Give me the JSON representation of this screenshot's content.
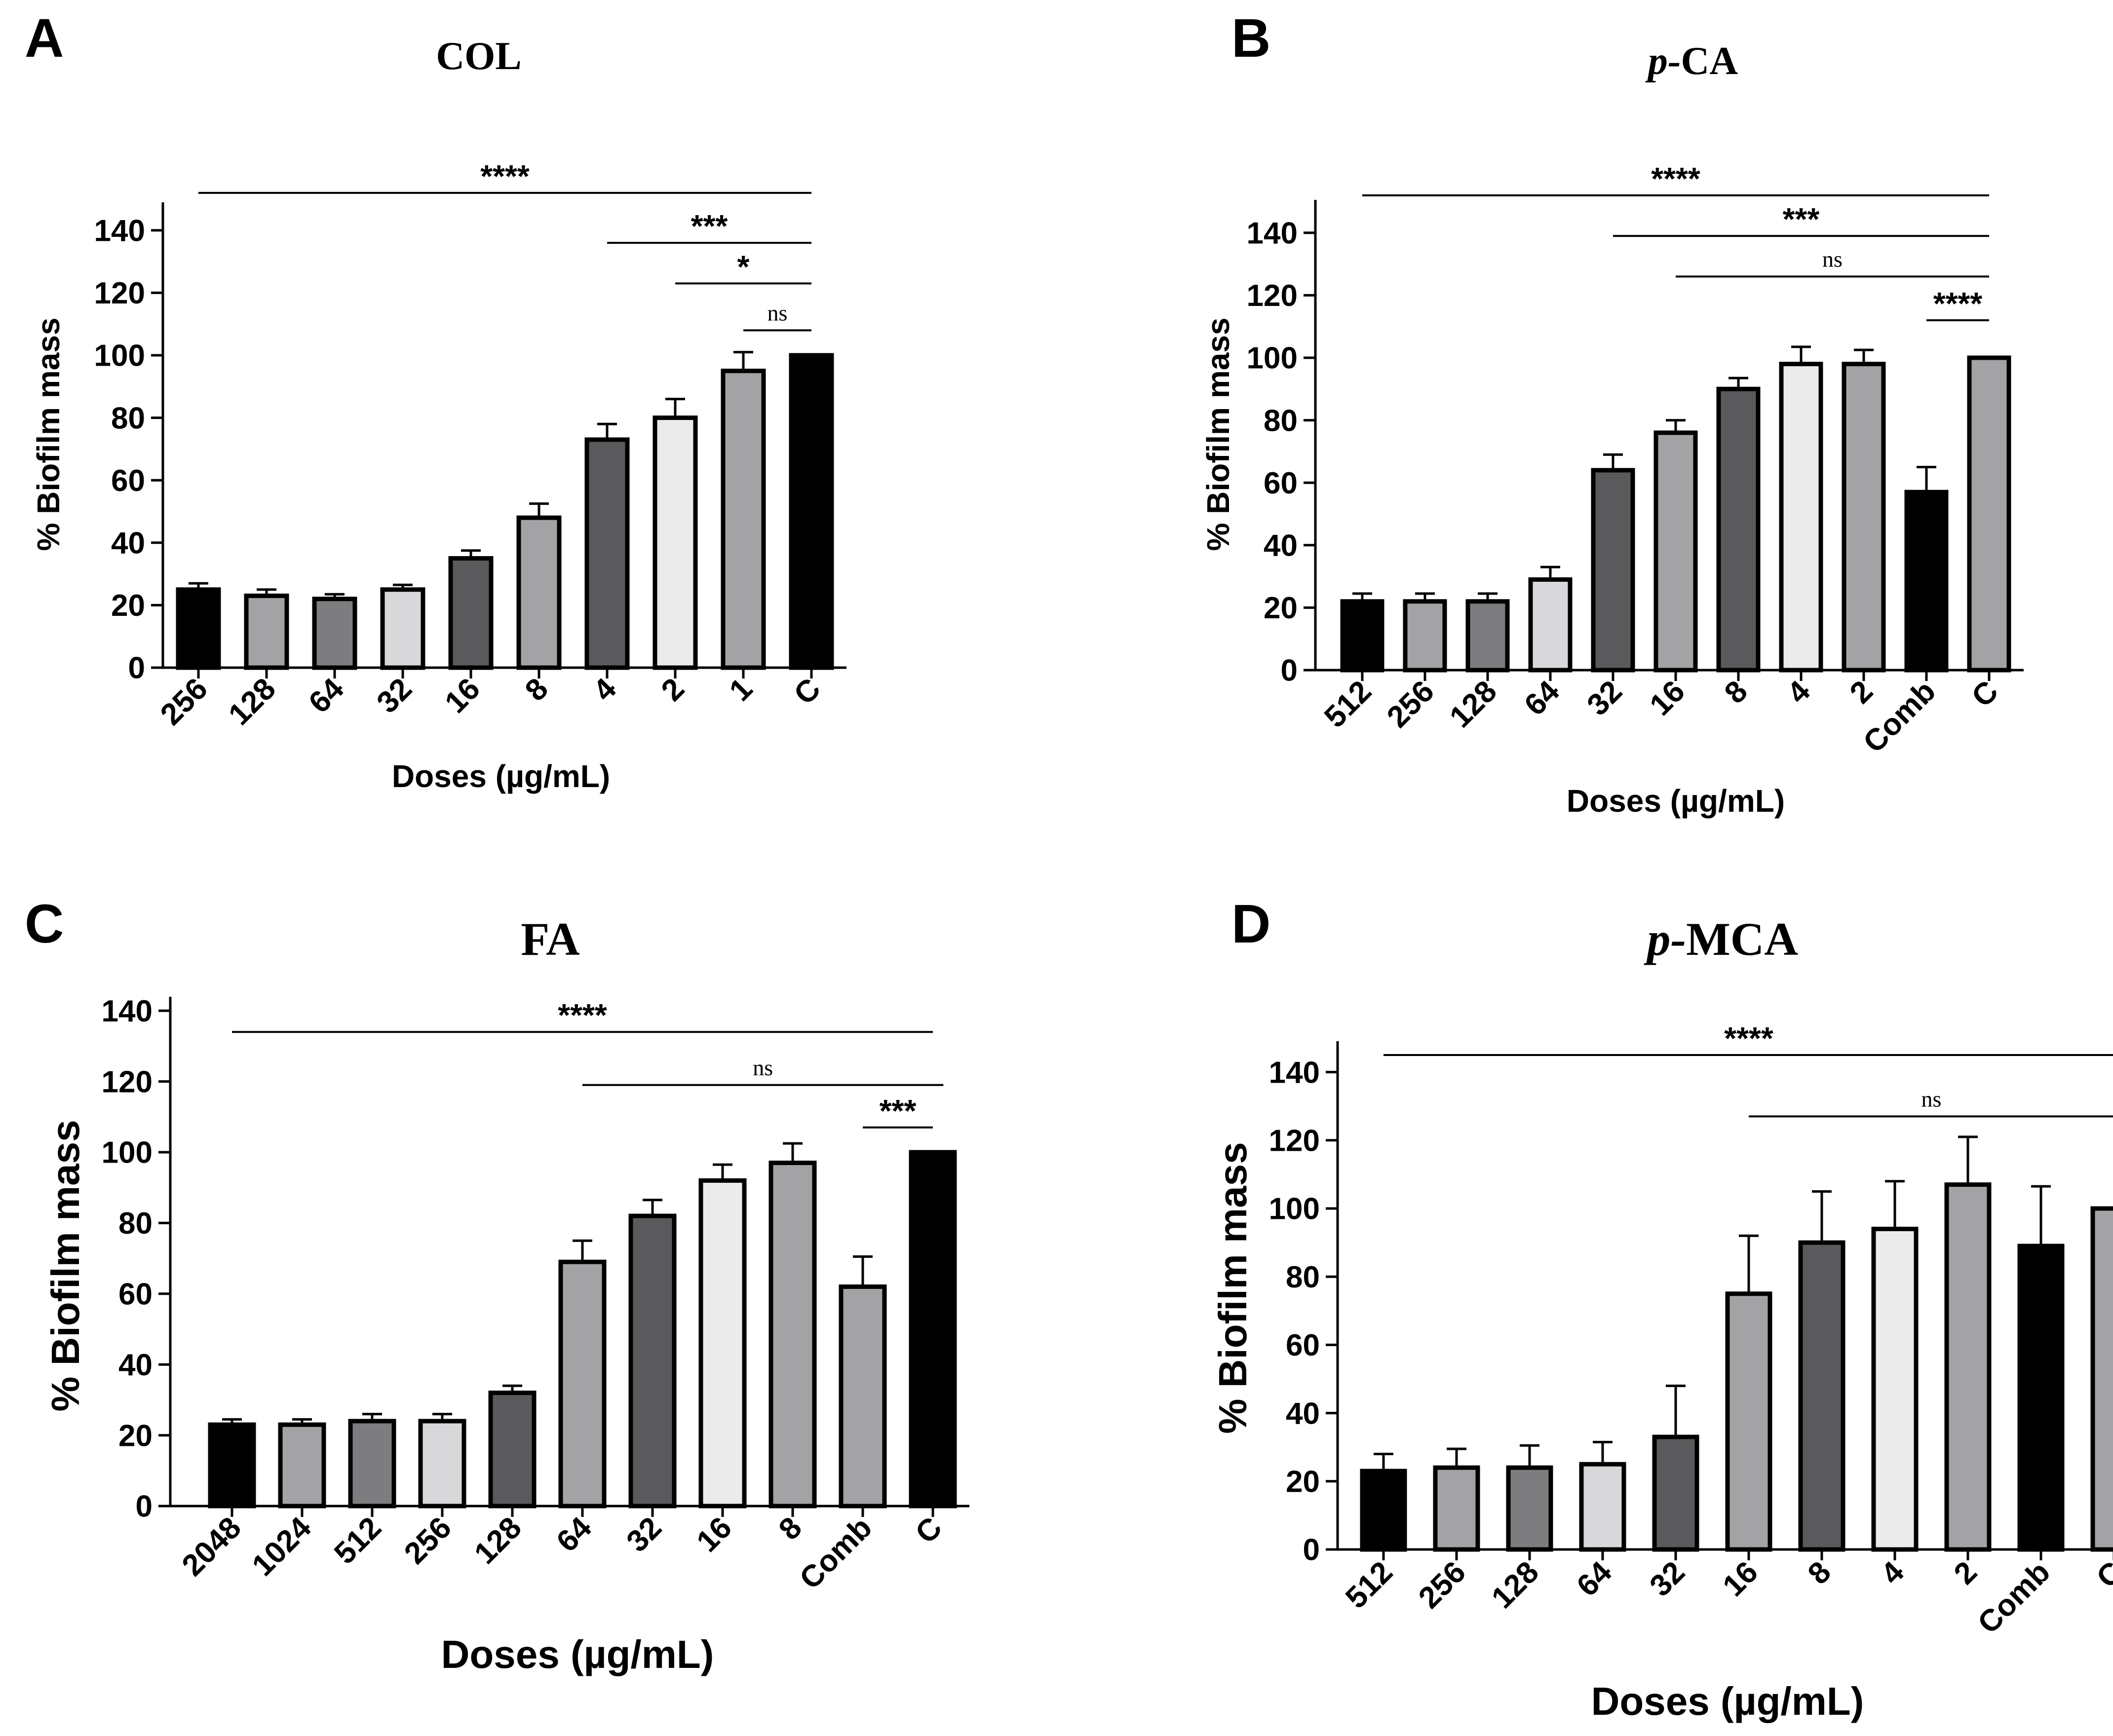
{
  "chart_data": [
    {
      "panel": "A",
      "type": "bar",
      "title": "COL",
      "title_italic_prefix": "",
      "xlabel": "Doses (µg/mL)",
      "ylabel": "% Biofilm mass",
      "ylim": [
        0,
        150
      ],
      "yticks": [
        0,
        20,
        40,
        60,
        80,
        100,
        120,
        140
      ],
      "categories": [
        "256",
        "128",
        "64",
        "32",
        "16",
        "8",
        "4",
        "2",
        "1",
        "C"
      ],
      "values": [
        25,
        23,
        22,
        25,
        35,
        48,
        73,
        80,
        95,
        100
      ],
      "errors": [
        2,
        2,
        1.5,
        1.5,
        2.5,
        4.5,
        5,
        6,
        6,
        0
      ],
      "colors": [
        "#000000",
        "#a3a3a6",
        "#7d7d80",
        "#d8d8da",
        "#5a5a5c",
        "#a3a3a6",
        "#5a5a5c",
        "#ebebec",
        "#a3a3a6",
        "#000000"
      ],
      "significance": [
        {
          "label": "****",
          "from": 0,
          "to": 9,
          "y": 152,
          "style": "stars"
        },
        {
          "label": "***",
          "from": 6,
          "to": 9,
          "y": 136,
          "style": "stars"
        },
        {
          "label": "*",
          "from": 7,
          "to": 9,
          "y": 123,
          "style": "stars"
        },
        {
          "label": "ns",
          "from": 8,
          "to": 9,
          "y": 108,
          "style": "ns"
        }
      ]
    },
    {
      "panel": "B",
      "type": "bar",
      "title": "CA",
      "title_italic_prefix": "p-",
      "xlabel": "Doses (µg/mL)",
      "ylabel": "% Biofilm mass",
      "ylim": [
        0,
        150
      ],
      "yticks": [
        0,
        20,
        40,
        60,
        80,
        100,
        120,
        140
      ],
      "categories": [
        "512",
        "256",
        "128",
        "64",
        "32",
        "16",
        "8",
        "4",
        "2",
        "Comb",
        "C"
      ],
      "values": [
        22,
        22,
        22,
        29,
        64,
        76,
        90,
        98,
        98,
        57,
        100
      ],
      "errors": [
        2.5,
        2.5,
        2.5,
        4,
        5,
        4,
        3.5,
        5.5,
        4.5,
        8,
        0
      ],
      "colors": [
        "#000000",
        "#a3a3a6",
        "#7d7d80",
        "#d8d8da",
        "#5a5a5c",
        "#a3a3a6",
        "#5a5a5c",
        "#ebebec",
        "#a3a3a6",
        "#000000",
        "#a3a3a6"
      ],
      "significance": [
        {
          "label": "****",
          "from": 0,
          "to": 10,
          "y": 152,
          "style": "stars"
        },
        {
          "label": "***",
          "from": 4,
          "to": 10,
          "y": 139,
          "style": "stars"
        },
        {
          "label": "ns",
          "from": 5,
          "to": 10,
          "y": 126,
          "style": "ns"
        },
        {
          "label": "****",
          "from": 9,
          "to": 10,
          "y": 112,
          "style": "stars"
        }
      ]
    },
    {
      "panel": "C",
      "type": "bar",
      "title": "FA",
      "title_italic_prefix": "",
      "xlabel": "Doses (µg/mL)",
      "ylabel": "% Biofilm mass",
      "ylim": [
        0,
        150
      ],
      "yticks": [
        0,
        20,
        40,
        60,
        80,
        100,
        120,
        140
      ],
      "categories": [
        "2048",
        "1024",
        "512",
        "256",
        "128",
        "64",
        "32",
        "16",
        "8",
        "Comb",
        "C"
      ],
      "values": [
        23,
        23,
        24,
        24,
        32,
        69,
        82,
        92,
        97,
        62,
        100
      ],
      "errors": [
        1.5,
        1.5,
        2,
        2,
        2,
        6,
        4.5,
        4.5,
        5.5,
        8.5,
        0
      ],
      "colors": [
        "#000000",
        "#a3a3a6",
        "#7d7d80",
        "#d8d8da",
        "#5a5a5c",
        "#a3a3a6",
        "#5a5a5c",
        "#ebebec",
        "#a3a3a6",
        "#a3a3a6",
        "#000000"
      ],
      "significance": [
        {
          "label": "****",
          "from": 0,
          "to": 10,
          "y": 134,
          "style": "stars"
        },
        {
          "label": "ns",
          "from": 5,
          "to": 10.15,
          "y": 119,
          "style": "ns"
        },
        {
          "label": "***",
          "from": 9,
          "to": 10,
          "y": 107,
          "style": "stars"
        }
      ]
    },
    {
      "panel": "D",
      "type": "bar",
      "title": "MCA",
      "title_italic_prefix": "p-",
      "xlabel": "Doses (µg/mL)",
      "ylabel": "% Biofilm mass",
      "ylim": [
        0,
        150
      ],
      "yticks": [
        0,
        20,
        40,
        60,
        80,
        100,
        120,
        140
      ],
      "categories": [
        "512",
        "256",
        "128",
        "64",
        "32",
        "16",
        "8",
        "4",
        "2",
        "Comb",
        "C"
      ],
      "values": [
        23,
        24,
        24,
        25,
        33,
        75,
        90,
        94,
        107,
        89,
        100
      ],
      "errors": [
        5,
        5.5,
        6.5,
        6.5,
        15,
        17,
        15,
        14,
        14,
        17.5,
        0
      ],
      "colors": [
        "#000000",
        "#a3a3a6",
        "#7d7d80",
        "#d8d8da",
        "#5a5a5c",
        "#a3a3a6",
        "#5a5a5c",
        "#ebebec",
        "#a3a3a6",
        "#000000",
        "#a3a3a6"
      ],
      "significance": [
        {
          "label": "****",
          "from": 0,
          "to": 10,
          "y": 145,
          "style": "stars"
        },
        {
          "label": "ns",
          "from": 5,
          "to": 10,
          "y": 127,
          "style": "ns"
        }
      ]
    }
  ]
}
